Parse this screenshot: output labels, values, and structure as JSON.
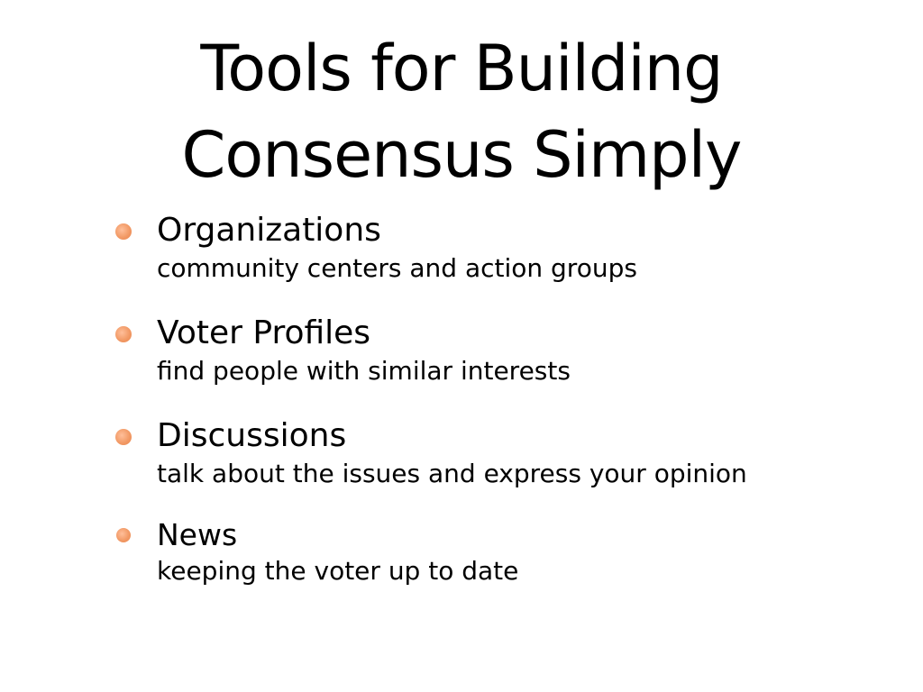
{
  "slide": {
    "title_line1": "Tools for Building",
    "title_line2": "Consensus Simply",
    "bullet_color": "#f29a66",
    "bullets": [
      {
        "heading": "Organizations",
        "description": "community centers and action groups"
      },
      {
        "heading": "Voter Profiles",
        "description": "find people with similar interests"
      },
      {
        "heading": "Discussions",
        "description": "talk about the issues and express your opinion"
      },
      {
        "heading": "News",
        "description": "keeping the voter up to date"
      }
    ]
  }
}
